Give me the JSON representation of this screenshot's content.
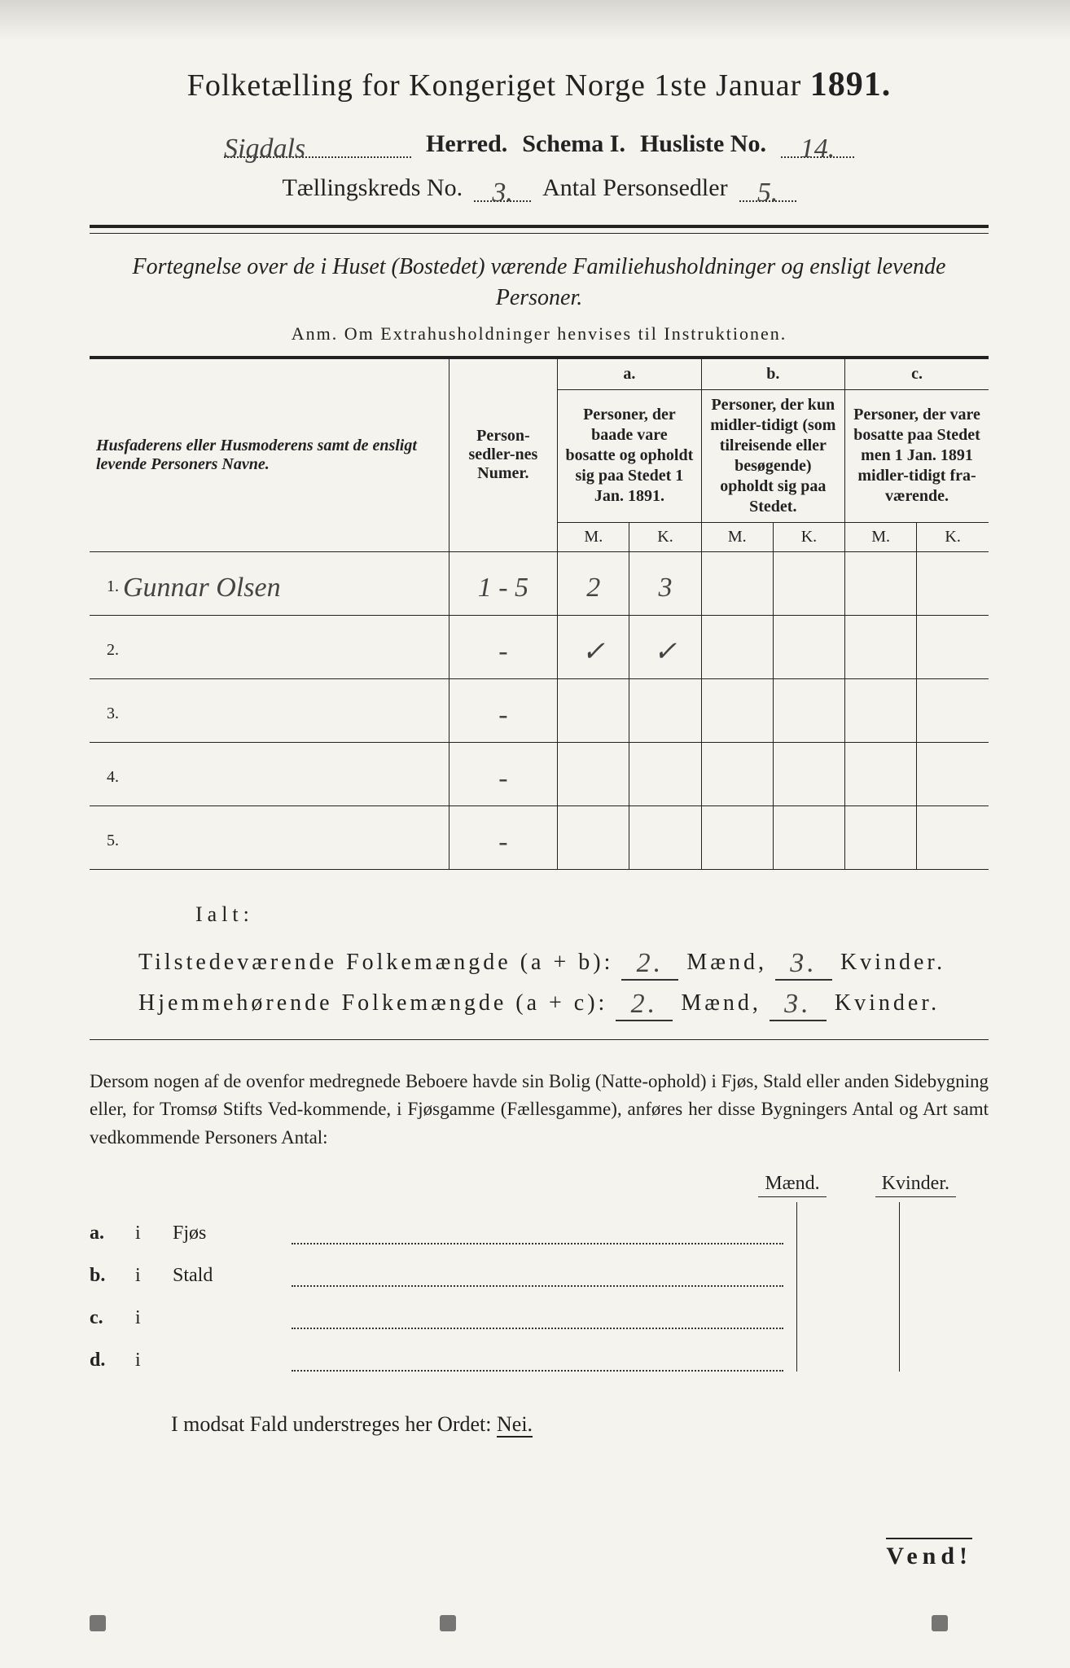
{
  "title": {
    "prefix": "Folketælling for Kongeriget Norge 1ste Januar",
    "year": "1891."
  },
  "header": {
    "herred_value": "Sigdals",
    "herred_label": "Herred.",
    "schema_label": "Schema I.",
    "husliste_label": "Husliste No.",
    "husliste_value": "14.",
    "kreds_label": "Tællingskreds No.",
    "kreds_value": "3.",
    "antal_label": "Antal Personsedler",
    "antal_value": "5."
  },
  "subtitle": "Fortegnelse over de i Huset (Bostedet) værende Familiehusholdninger og ensligt levende Personer.",
  "anm": "Anm.  Om Extrahusholdninger henvises til Instruktionen.",
  "table": {
    "h_names": "Husfaderens eller Husmoderens samt de ensligt levende Personers Navne.",
    "h_ps": "Person-sedler-nes Numer.",
    "h_a_top": "a.",
    "h_a": "Personer, der baade vare bosatte og opholdt sig paa Stedet 1 Jan. 1891.",
    "h_b_top": "b.",
    "h_b": "Personer, der kun midler-tidigt (som tilreisende eller besøgende) opholdt sig paa Stedet.",
    "h_c_top": "c.",
    "h_c": "Personer, der vare bosatte paa Stedet men 1 Jan. 1891 midler-tidigt fra-værende.",
    "m": "M.",
    "k": "K.",
    "rows": [
      {
        "n": "1.",
        "name": "Gunnar Olsen",
        "ps": "1 - 5",
        "am": "2",
        "ak": "3",
        "bm": "",
        "bk": "",
        "cm": "",
        "ck": ""
      },
      {
        "n": "2.",
        "name": "",
        "ps": "-",
        "am": "✓",
        "ak": "✓",
        "bm": "",
        "bk": "",
        "cm": "",
        "ck": ""
      },
      {
        "n": "3.",
        "name": "",
        "ps": "-",
        "am": "",
        "ak": "",
        "bm": "",
        "bk": "",
        "cm": "",
        "ck": ""
      },
      {
        "n": "4.",
        "name": "",
        "ps": "-",
        "am": "",
        "ak": "",
        "bm": "",
        "bk": "",
        "cm": "",
        "ck": ""
      },
      {
        "n": "5.",
        "name": "",
        "ps": "-",
        "am": "",
        "ak": "",
        "bm": "",
        "bk": "",
        "cm": "",
        "ck": ""
      }
    ]
  },
  "sums": {
    "ialt": "Ialt:",
    "line1_label": "Tilstedeværende Folkemængde (a + b):",
    "line2_label": "Hjemmehørende Folkemængde (a + c):",
    "maend": "Mænd,",
    "kvinder": "Kvinder.",
    "v1m": "2.",
    "v1k": "3.",
    "v2m": "2.",
    "v2k": "3."
  },
  "para": "Dersom nogen af de ovenfor medregnede Beboere havde sin Bolig (Natte-ophold) i Fjøs, Stald eller anden Sidebygning eller, for Tromsø Stifts Ved-kommende, i Fjøsgamme (Fællesgamme), anføres her disse Bygningers Antal og Art samt vedkommende Personers Antal:",
  "mkhdr": {
    "m": "Mænd.",
    "k": "Kvinder."
  },
  "abcd": {
    "a": {
      "lab": "a.",
      "i": "i",
      "txt": "Fjøs"
    },
    "b": {
      "lab": "b.",
      "i": "i",
      "txt": "Stald"
    },
    "c": {
      "lab": "c.",
      "i": "i",
      "txt": ""
    },
    "d": {
      "lab": "d.",
      "i": "i",
      "txt": ""
    }
  },
  "nei": {
    "pre": "I modsat Fald understreges her Ordet:",
    "word": "Nei."
  },
  "vend": "Vend!",
  "colors": {
    "paper": "#f4f3ee",
    "ink": "#222222",
    "hand": "#444444"
  }
}
